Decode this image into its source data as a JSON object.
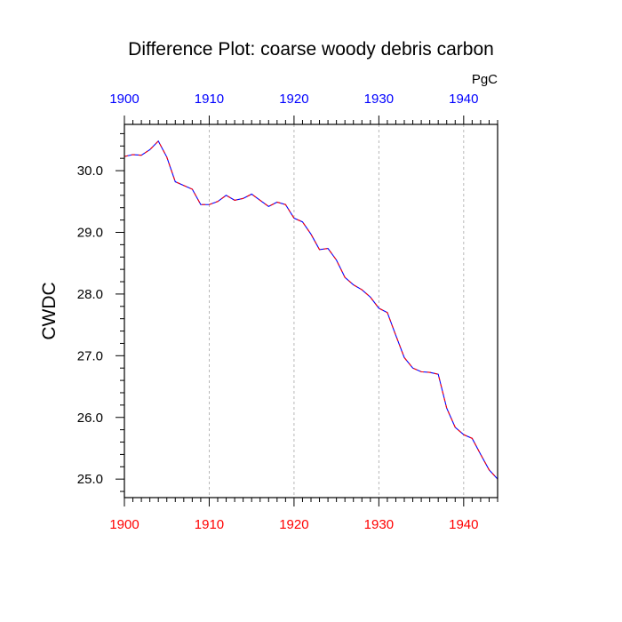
{
  "chart_data": {
    "type": "line",
    "title": "Difference Plot: coarse woody debris carbon",
    "units_label": "PgC",
    "ylabel": "CWDC",
    "xlabel": "",
    "xlim": [
      1900,
      1944
    ],
    "ylim": [
      24.7,
      30.75
    ],
    "x_ticks": [
      1900,
      1910,
      1920,
      1930,
      1940
    ],
    "x_tick_labels": [
      "1900",
      "1910",
      "1920",
      "1930",
      "1940"
    ],
    "y_ticks": [
      25,
      26,
      27,
      28,
      29,
      30
    ],
    "y_tick_labels": [
      "25.0",
      "26.0",
      "27.0",
      "28.0",
      "29.0",
      "30.0"
    ],
    "grid": "vertical dashed at major x ticks",
    "top_axis_color": "#0000ff",
    "bottom_axis_color": "#ff0000",
    "series": [
      {
        "color_line": "#0000ff",
        "color_dash": "#ff0000",
        "style": "dashed",
        "x": [
          1900,
          1901,
          1902,
          1903,
          1904,
          1905,
          1906,
          1907,
          1908,
          1909,
          1910,
          1911,
          1912,
          1913,
          1914,
          1915,
          1916,
          1917,
          1918,
          1919,
          1920,
          1921,
          1922,
          1923,
          1924,
          1925,
          1926,
          1927,
          1928,
          1929,
          1930,
          1931,
          1932,
          1933,
          1934,
          1935,
          1936,
          1937,
          1938,
          1939,
          1940,
          1941,
          1942,
          1943,
          1944
        ],
        "values": [
          30.23,
          30.26,
          30.25,
          30.34,
          30.48,
          30.22,
          29.82,
          29.76,
          29.7,
          29.45,
          29.45,
          29.5,
          29.6,
          29.52,
          29.55,
          29.62,
          29.52,
          29.42,
          29.49,
          29.45,
          29.23,
          29.17,
          28.97,
          28.72,
          28.74,
          28.55,
          28.27,
          28.15,
          28.07,
          27.95,
          27.77,
          27.7,
          27.33,
          26.97,
          26.8,
          26.74,
          26.73,
          26.7,
          26.15,
          25.84,
          25.72,
          25.66,
          25.4,
          25.15,
          25.0
        ]
      }
    ]
  }
}
